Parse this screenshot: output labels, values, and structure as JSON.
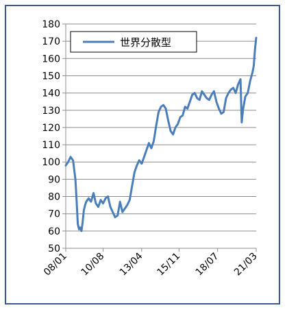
{
  "chart_data": {
    "type": "line",
    "title": "",
    "xlabel": "",
    "ylabel": "",
    "ylim": [
      50,
      180
    ],
    "y_ticks": [
      50,
      60,
      70,
      80,
      90,
      100,
      110,
      120,
      130,
      140,
      150,
      160,
      170,
      180
    ],
    "x_tick_labels": [
      "08/01",
      "10/08",
      "13/04",
      "15/11",
      "18/07",
      "21/03"
    ],
    "grid": "horizontal",
    "legend_position": "top-left",
    "line_color": "#4a7ebb",
    "series": [
      {
        "name": "世界分散型",
        "x": [
          "08/01",
          "08/03",
          "08/05",
          "08/07",
          "08/09",
          "08/10",
          "08/11",
          "08/12",
          "09/01",
          "09/02",
          "09/03",
          "09/04",
          "09/05",
          "09/06",
          "09/08",
          "09/10",
          "09/12",
          "10/02",
          "10/04",
          "10/06",
          "10/08",
          "10/10",
          "10/12",
          "11/02",
          "11/04",
          "11/06",
          "11/08",
          "11/10",
          "11/12",
          "12/02",
          "12/04",
          "12/06",
          "12/08",
          "12/10",
          "12/12",
          "13/02",
          "13/04",
          "13/06",
          "13/08",
          "13/10",
          "13/12",
          "14/02",
          "14/04",
          "14/06",
          "14/08",
          "14/10",
          "14/12",
          "15/02",
          "15/04",
          "15/06",
          "15/08",
          "15/10",
          "15/12",
          "16/02",
          "16/04",
          "16/06",
          "16/08",
          "16/10",
          "16/12",
          "17/02",
          "17/04",
          "17/06",
          "17/08",
          "17/10",
          "17/12",
          "18/02",
          "18/04",
          "18/06",
          "18/08",
          "18/10",
          "18/12",
          "19/02",
          "19/04",
          "19/06",
          "19/08",
          "19/10",
          "19/12",
          "20/02",
          "20/03",
          "20/04",
          "20/06",
          "20/08",
          "20/10",
          "20/12",
          "21/01",
          "21/02",
          "21/03"
        ],
        "values": [
          98,
          100,
          103,
          101,
          90,
          78,
          64,
          61,
          62,
          60,
          65,
          72,
          75,
          77,
          79,
          77,
          82,
          76,
          74,
          78,
          76,
          79,
          80,
          74,
          71,
          68,
          69,
          77,
          71,
          73,
          75,
          78,
          86,
          94,
          98,
          101,
          99,
          103,
          107,
          111,
          108,
          112,
          121,
          129,
          132,
          133,
          131,
          124,
          118,
          116,
          120,
          122,
          126,
          127,
          132,
          131,
          135,
          139,
          140,
          137,
          136,
          141,
          139,
          137,
          136,
          139,
          141,
          135,
          131,
          128,
          129,
          137,
          140,
          142,
          143,
          140,
          145,
          148,
          123,
          130,
          138,
          140,
          147,
          152,
          156,
          165,
          172
        ]
      }
    ]
  }
}
